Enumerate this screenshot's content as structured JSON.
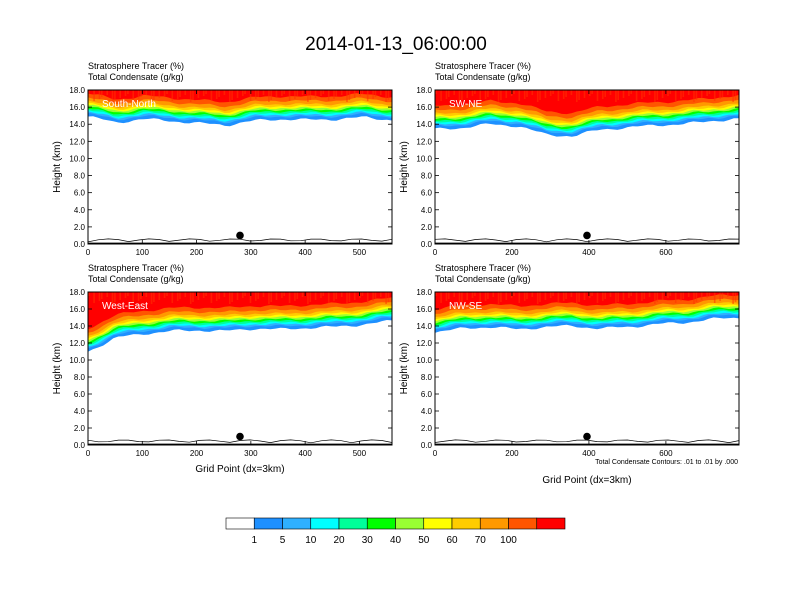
{
  "title": "2014-01-13_06:00:00",
  "var_label_1": "Stratosphere Tracer   (%)",
  "var_label_2": "Total Condensate   (g/kg)",
  "contour_note": "Total Condensate Contours: .01 to .01 by .000",
  "colors": {
    "levels": [
      "#ffffff",
      "#1e90ff",
      "#2fb0ff",
      "#00ffff",
      "#00ff99",
      "#00ff00",
      "#99ff33",
      "#ffff00",
      "#ffcc00",
      "#ff9900",
      "#ff5500",
      "#ff0000"
    ],
    "contour": "#000000"
  },
  "chart_data": [
    {
      "type": "heatmap",
      "name": "South-North",
      "ylabel": "Height (km)",
      "xlabel": "",
      "xlim": [
        0,
        560
      ],
      "ylim": [
        0,
        18
      ],
      "xticks": [
        0,
        100,
        200,
        300,
        400,
        500
      ],
      "yticks": [
        "0.0",
        "2.0",
        "4.0",
        "6.0",
        "8.0",
        "10.0",
        "12.0",
        "14.0",
        "16.0",
        "18.0"
      ],
      "marker_x": 280,
      "tracer_base_km": [
        14.9,
        14.2,
        14.6,
        14.4,
        14.1,
        13.9,
        14.4,
        14.6,
        14.5,
        14.6,
        14.8,
        14.5
      ]
    },
    {
      "type": "heatmap",
      "name": "SW-NE",
      "ylabel": "Height (km)",
      "xlabel": "",
      "xlim": [
        0,
        790
      ],
      "ylim": [
        0,
        18
      ],
      "xticks": [
        0,
        200,
        400,
        600
      ],
      "yticks": [
        "0.0",
        "2.0",
        "4.0",
        "6.0",
        "8.0",
        "10.0",
        "12.0",
        "14.0",
        "16.0",
        "18.0"
      ],
      "marker_x": 395,
      "tracer_base_km": [
        13.4,
        13.6,
        14.0,
        13.8,
        12.8,
        12.6,
        13.4,
        13.6,
        13.9,
        14.0,
        14.4,
        14.6
      ]
    },
    {
      "type": "heatmap",
      "name": "West-East",
      "ylabel": "Height (km)",
      "xlabel": "Grid Point (dx=3km)",
      "xlim": [
        0,
        560
      ],
      "ylim": [
        0,
        18
      ],
      "xticks": [
        0,
        100,
        200,
        300,
        400,
        500
      ],
      "yticks": [
        "0.0",
        "2.0",
        "4.0",
        "6.0",
        "8.0",
        "10.0",
        "12.0",
        "14.0",
        "16.0",
        "18.0"
      ],
      "marker_x": 280,
      "tracer_base_km": [
        11.0,
        12.6,
        13.1,
        13.4,
        13.5,
        13.4,
        13.7,
        13.6,
        13.8,
        13.9,
        14.2,
        14.6
      ]
    },
    {
      "type": "heatmap",
      "name": "NW-SE",
      "ylabel": "Height (km)",
      "xlabel": "Grid Point (dx=3km)",
      "xlim": [
        0,
        790
      ],
      "ylim": [
        0,
        18
      ],
      "xticks": [
        0,
        200,
        400,
        600
      ],
      "yticks": [
        "0.0",
        "2.0",
        "4.0",
        "6.0",
        "8.0",
        "10.0",
        "12.0",
        "14.0",
        "16.0",
        "18.0"
      ],
      "marker_x": 395,
      "tracer_base_km": [
        13.3,
        13.7,
        13.9,
        13.6,
        13.9,
        14.0,
        13.7,
        13.9,
        14.2,
        14.4,
        14.8,
        15.0
      ]
    }
  ],
  "colorbar": {
    "labels": [
      "1",
      "5",
      "10",
      "20",
      "30",
      "40",
      "50",
      "60",
      "70",
      "100"
    ]
  }
}
